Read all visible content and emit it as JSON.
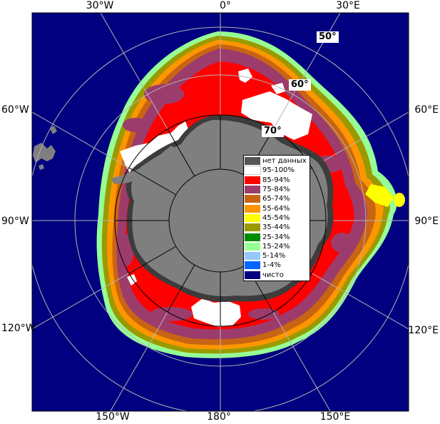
{
  "map": {
    "longitude_labels": {
      "top": [
        "30°W",
        "0°",
        "30°E"
      ],
      "bottom": [
        "150°W",
        "180°",
        "150°E"
      ],
      "left": [
        "60°W",
        "90°W",
        "120°W"
      ],
      "right": [
        "60°E",
        "90°E",
        "120°E"
      ]
    },
    "latitude_labels": [
      "50°",
      "60°",
      "70°"
    ],
    "colors": {
      "ocean_clear": "#000080",
      "land": "#7f7f7f",
      "ice_shelf": "#3c3c3c",
      "graticule": "#b4b4b4",
      "antarctic_graticule": "#000000"
    }
  },
  "legend": {
    "items": [
      {
        "label": "нет данных",
        "color": "#555555"
      },
      {
        "label": "95-100%",
        "color": "#ffffff"
      },
      {
        "label": "85-94%",
        "color": "#ff0000"
      },
      {
        "label": "75-84%",
        "color": "#9c3c6c"
      },
      {
        "label": "65-74%",
        "color": "#c86414"
      },
      {
        "label": "55-64%",
        "color": "#ff9600"
      },
      {
        "label": "45-54%",
        "color": "#ffff00"
      },
      {
        "label": "35-44%",
        "color": "#9a9a00"
      },
      {
        "label": "25-34%",
        "color": "#008c00"
      },
      {
        "label": "15-24%",
        "color": "#96ff96"
      },
      {
        "label": "5-14%",
        "color": "#96c8ff"
      },
      {
        "label": "1-4%",
        "color": "#0064ff"
      },
      {
        "label": "чисто",
        "color": "#000080"
      }
    ]
  }
}
